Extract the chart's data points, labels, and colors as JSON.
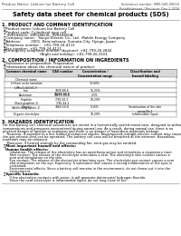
{
  "title": "Safety data sheet for chemical products (SDS)",
  "header_left": "Product Name: Lithium Ion Battery Cell",
  "header_right": "Substance number: 9MS-049-00010\nEstablishment / Revision: Dec.1.2016",
  "background_color": "#ffffff",
  "section1_title": "1. PRODUCT AND COMPANY IDENTIFICATION",
  "section1_lines": [
    "・Product name: Lithium Ion Battery Cell",
    "・Product code: Cylindrical-type cell",
    "   9VR18650U, 9VR18650L, 9VR18650A",
    "・Company name:   Sanyo Electric Co., Ltd.  Mobile Energy Company",
    "・Address:         2001  Kaminakaura, Sumoto-City, Hyogo, Japan",
    "・Telephone number :  +81-799-24-4111",
    "・Fax number:  +81-799-24-4121",
    "・Emergency telephone number (daytime): +81-799-26-2842",
    "                                (Night and holiday): +81-799-26-3101"
  ],
  "section2_title": "2. COMPOSITION / INFORMATION ON INGREDIENTS",
  "section2_sub": "・Substance or preparation: Preparation",
  "section2_sub2": "・Information about the chemical nature of product:",
  "table_headers": [
    "Common chemical name",
    "CAS number",
    "Concentration /\nConcentration range",
    "Classification and\nhazard labeling"
  ],
  "table_col0": [
    "Chemical name",
    "Lithium oxide tantalate\n(LiMn₂O₄(LiCoO₂))",
    "Iron",
    "Aluminum",
    "Graphite\n(Hard graphite-1)\n(Artificial graphite-1)",
    "Copper",
    "Organic electrolyte"
  ],
  "table_col1": [
    "",
    "",
    "7439-89-6\n74239-90-6",
    "74239-90-8",
    "7782-42-5\n7782-44-2",
    "7440-50-8",
    ""
  ],
  "table_col2": [
    "",
    "30-60%",
    "15-25%",
    "2-5%",
    "10-20%",
    "5-15%",
    "10-20%"
  ],
  "table_col3": [
    "",
    "",
    "",
    "",
    "",
    "Sensitization of the skin\ngroup No.2",
    "Inflammable liquid"
  ],
  "section3_title": "3. HAZARDS IDENTIFICATION",
  "section3_para1": "For this battery cell, chemical substances are stored in a hermetically sealed metal case, designed to withstand\ntemperatures and pressures encountered during normal use. As a result, during normal use, there is no\nphysical danger of ignition or explosion and there is no danger of hazardous materials leakage.",
  "section3_para2": "    However, if exposed to a fire, added mechanical shocks, decomposed, airtight electric current may cause,\nthe gas release vent can be operated. The battery cell case will be breached at the extreme. Hazardous\nmaterials may be released.",
  "section3_para3": "    Moreover, if heated strongly by the surrounding fire, emit gas may be emitted.",
  "section3_sub1": "・Most important hazard and effects:",
  "section3_human": "Human health effects:",
  "section3_inhale": "    Inhalation: The release of the electrolyte has an anesthesia action and stimulates a respiratory tract.",
  "section3_skin1": "    Skin contact: The release of the electrolyte stimulates a skin. The electrolyte skin contact causes a",
  "section3_skin2": "    sore and stimulation on the skin.",
  "section3_eye1": "    Eye contact: The release of the electrolyte stimulates eyes. The electrolyte eye contact causes a sore",
  "section3_eye2": "    and stimulation on the eye. Especially, a substance that causes a strong inflammation of the eyes is",
  "section3_eye3": "    contained.",
  "section3_env1": "    Environmental effects: Since a battery cell remains in the environment, do not throw out it into the",
  "section3_env2": "    environment.",
  "section3_sub2": "・Specific hazards:",
  "section3_sp1": "    If the electrolyte contacts with water, it will generate detrimental hydrogen fluoride.",
  "section3_sp2": "    Since the neat electrolyte is inflammable liquid, do not long close to fire."
}
